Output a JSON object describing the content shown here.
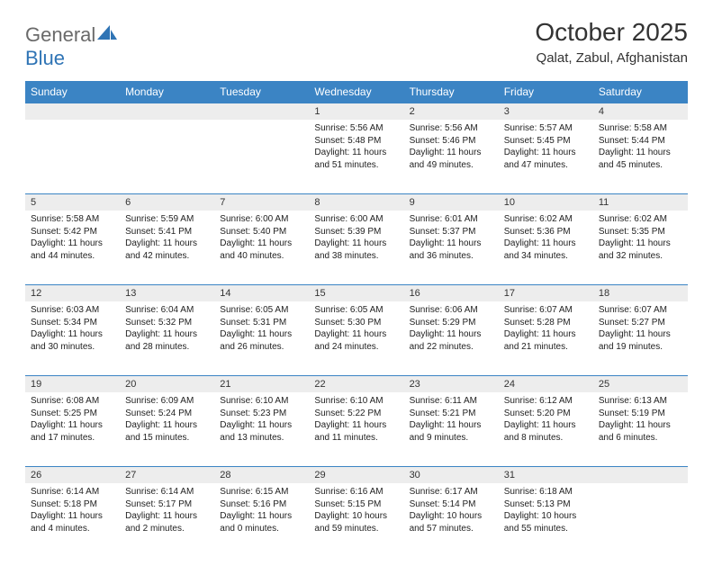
{
  "brand": {
    "part1": "General",
    "part2": "Blue"
  },
  "title": "October 2025",
  "location": "Qalat, Zabul, Afghanistan",
  "colors": {
    "header_bg": "#3b84c4",
    "header_text": "#ffffff",
    "daynum_bg": "#ededed",
    "rule": "#3b84c4",
    "logo_gray": "#6a6a6a",
    "logo_blue": "#2f74b5",
    "text": "#222222"
  },
  "day_names": [
    "Sunday",
    "Monday",
    "Tuesday",
    "Wednesday",
    "Thursday",
    "Friday",
    "Saturday"
  ],
  "weeks": [
    [
      null,
      null,
      null,
      {
        "n": "1",
        "sr": "Sunrise: 5:56 AM",
        "ss": "Sunset: 5:48 PM",
        "dl": "Daylight: 11 hours and 51 minutes."
      },
      {
        "n": "2",
        "sr": "Sunrise: 5:56 AM",
        "ss": "Sunset: 5:46 PM",
        "dl": "Daylight: 11 hours and 49 minutes."
      },
      {
        "n": "3",
        "sr": "Sunrise: 5:57 AM",
        "ss": "Sunset: 5:45 PM",
        "dl": "Daylight: 11 hours and 47 minutes."
      },
      {
        "n": "4",
        "sr": "Sunrise: 5:58 AM",
        "ss": "Sunset: 5:44 PM",
        "dl": "Daylight: 11 hours and 45 minutes."
      }
    ],
    [
      {
        "n": "5",
        "sr": "Sunrise: 5:58 AM",
        "ss": "Sunset: 5:42 PM",
        "dl": "Daylight: 11 hours and 44 minutes."
      },
      {
        "n": "6",
        "sr": "Sunrise: 5:59 AM",
        "ss": "Sunset: 5:41 PM",
        "dl": "Daylight: 11 hours and 42 minutes."
      },
      {
        "n": "7",
        "sr": "Sunrise: 6:00 AM",
        "ss": "Sunset: 5:40 PM",
        "dl": "Daylight: 11 hours and 40 minutes."
      },
      {
        "n": "8",
        "sr": "Sunrise: 6:00 AM",
        "ss": "Sunset: 5:39 PM",
        "dl": "Daylight: 11 hours and 38 minutes."
      },
      {
        "n": "9",
        "sr": "Sunrise: 6:01 AM",
        "ss": "Sunset: 5:37 PM",
        "dl": "Daylight: 11 hours and 36 minutes."
      },
      {
        "n": "10",
        "sr": "Sunrise: 6:02 AM",
        "ss": "Sunset: 5:36 PM",
        "dl": "Daylight: 11 hours and 34 minutes."
      },
      {
        "n": "11",
        "sr": "Sunrise: 6:02 AM",
        "ss": "Sunset: 5:35 PM",
        "dl": "Daylight: 11 hours and 32 minutes."
      }
    ],
    [
      {
        "n": "12",
        "sr": "Sunrise: 6:03 AM",
        "ss": "Sunset: 5:34 PM",
        "dl": "Daylight: 11 hours and 30 minutes."
      },
      {
        "n": "13",
        "sr": "Sunrise: 6:04 AM",
        "ss": "Sunset: 5:32 PM",
        "dl": "Daylight: 11 hours and 28 minutes."
      },
      {
        "n": "14",
        "sr": "Sunrise: 6:05 AM",
        "ss": "Sunset: 5:31 PM",
        "dl": "Daylight: 11 hours and 26 minutes."
      },
      {
        "n": "15",
        "sr": "Sunrise: 6:05 AM",
        "ss": "Sunset: 5:30 PM",
        "dl": "Daylight: 11 hours and 24 minutes."
      },
      {
        "n": "16",
        "sr": "Sunrise: 6:06 AM",
        "ss": "Sunset: 5:29 PM",
        "dl": "Daylight: 11 hours and 22 minutes."
      },
      {
        "n": "17",
        "sr": "Sunrise: 6:07 AM",
        "ss": "Sunset: 5:28 PM",
        "dl": "Daylight: 11 hours and 21 minutes."
      },
      {
        "n": "18",
        "sr": "Sunrise: 6:07 AM",
        "ss": "Sunset: 5:27 PM",
        "dl": "Daylight: 11 hours and 19 minutes."
      }
    ],
    [
      {
        "n": "19",
        "sr": "Sunrise: 6:08 AM",
        "ss": "Sunset: 5:25 PM",
        "dl": "Daylight: 11 hours and 17 minutes."
      },
      {
        "n": "20",
        "sr": "Sunrise: 6:09 AM",
        "ss": "Sunset: 5:24 PM",
        "dl": "Daylight: 11 hours and 15 minutes."
      },
      {
        "n": "21",
        "sr": "Sunrise: 6:10 AM",
        "ss": "Sunset: 5:23 PM",
        "dl": "Daylight: 11 hours and 13 minutes."
      },
      {
        "n": "22",
        "sr": "Sunrise: 6:10 AM",
        "ss": "Sunset: 5:22 PM",
        "dl": "Daylight: 11 hours and 11 minutes."
      },
      {
        "n": "23",
        "sr": "Sunrise: 6:11 AM",
        "ss": "Sunset: 5:21 PM",
        "dl": "Daylight: 11 hours and 9 minutes."
      },
      {
        "n": "24",
        "sr": "Sunrise: 6:12 AM",
        "ss": "Sunset: 5:20 PM",
        "dl": "Daylight: 11 hours and 8 minutes."
      },
      {
        "n": "25",
        "sr": "Sunrise: 6:13 AM",
        "ss": "Sunset: 5:19 PM",
        "dl": "Daylight: 11 hours and 6 minutes."
      }
    ],
    [
      {
        "n": "26",
        "sr": "Sunrise: 6:14 AM",
        "ss": "Sunset: 5:18 PM",
        "dl": "Daylight: 11 hours and 4 minutes."
      },
      {
        "n": "27",
        "sr": "Sunrise: 6:14 AM",
        "ss": "Sunset: 5:17 PM",
        "dl": "Daylight: 11 hours and 2 minutes."
      },
      {
        "n": "28",
        "sr": "Sunrise: 6:15 AM",
        "ss": "Sunset: 5:16 PM",
        "dl": "Daylight: 11 hours and 0 minutes."
      },
      {
        "n": "29",
        "sr": "Sunrise: 6:16 AM",
        "ss": "Sunset: 5:15 PM",
        "dl": "Daylight: 10 hours and 59 minutes."
      },
      {
        "n": "30",
        "sr": "Sunrise: 6:17 AM",
        "ss": "Sunset: 5:14 PM",
        "dl": "Daylight: 10 hours and 57 minutes."
      },
      {
        "n": "31",
        "sr": "Sunrise: 6:18 AM",
        "ss": "Sunset: 5:13 PM",
        "dl": "Daylight: 10 hours and 55 minutes."
      },
      null
    ]
  ]
}
